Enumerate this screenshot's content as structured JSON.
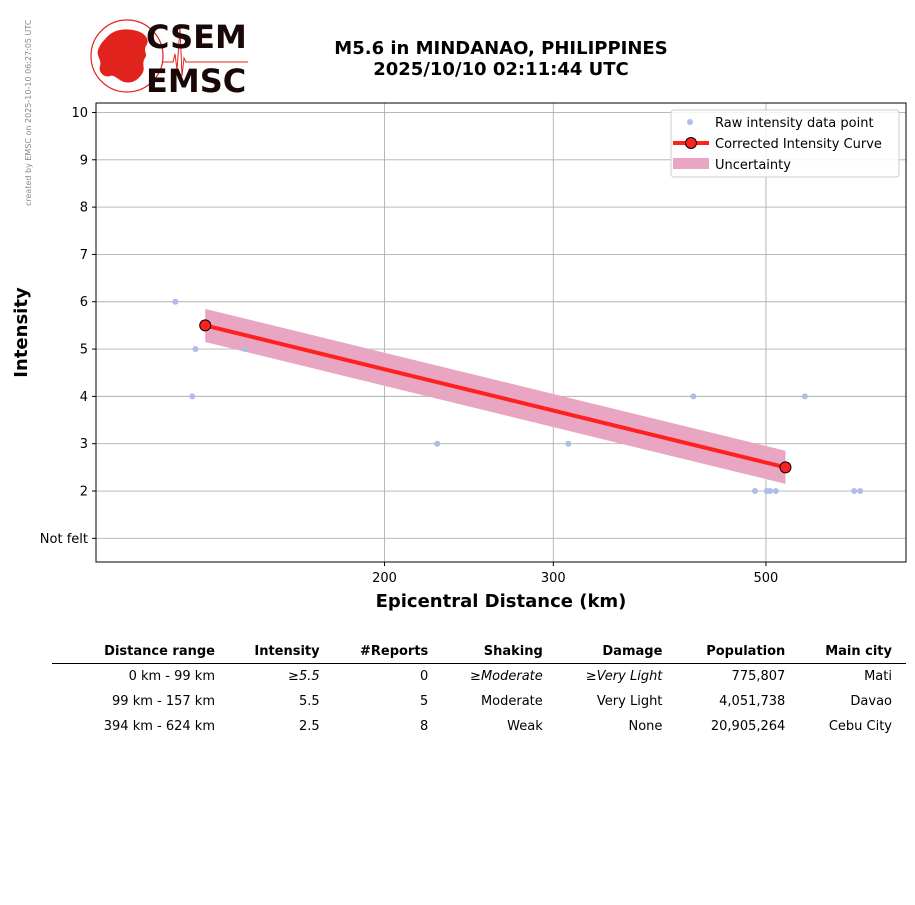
{
  "watermark": "created by EMSC on 2025-10-10 06:27:05 UTC",
  "logo": {
    "line1": "CSEM",
    "line2": "EMSC",
    "brand_color": "#e0231c"
  },
  "title": {
    "line1": "M5.6 in MINDANAO, PHILIPPINES",
    "line2": "2025/10/10 02:11:44 UTC"
  },
  "chart_data": {
    "type": "scatter",
    "xlabel": "Epicentral Distance (km)",
    "ylabel": "Intensity",
    "x_scale": "log",
    "xlim": [
      100,
      700
    ],
    "ylim": [
      0.5,
      10.2
    ],
    "x_ticks": [
      200,
      300,
      500
    ],
    "y_ticks": [
      {
        "value": 1,
        "label": "Not felt"
      },
      {
        "value": 2,
        "label": "2"
      },
      {
        "value": 3,
        "label": "3"
      },
      {
        "value": 4,
        "label": "4"
      },
      {
        "value": 5,
        "label": "5"
      },
      {
        "value": 6,
        "label": "6"
      },
      {
        "value": 7,
        "label": "7"
      },
      {
        "value": 8,
        "label": "8"
      },
      {
        "value": 9,
        "label": "9"
      },
      {
        "value": 10,
        "label": "10"
      }
    ],
    "grid": true,
    "legend_position": "top-right",
    "series": [
      {
        "name": "Raw intensity data point",
        "kind": "points",
        "color": "#aebde9",
        "points": [
          {
            "x": 121,
            "y": 6
          },
          {
            "x": 126,
            "y": 4
          },
          {
            "x": 127,
            "y": 5
          },
          {
            "x": 143,
            "y": 5
          },
          {
            "x": 227,
            "y": 3
          },
          {
            "x": 311,
            "y": 3
          },
          {
            "x": 420,
            "y": 4
          },
          {
            "x": 487,
            "y": 2
          },
          {
            "x": 501,
            "y": 2
          },
          {
            "x": 505,
            "y": 2
          },
          {
            "x": 512,
            "y": 2
          },
          {
            "x": 549,
            "y": 4
          },
          {
            "x": 618,
            "y": 2
          },
          {
            "x": 627,
            "y": 2
          }
        ]
      },
      {
        "name": "Corrected Intensity Curve",
        "kind": "line",
        "color": "#ff2020",
        "points": [
          {
            "x": 130,
            "y": 5.5
          },
          {
            "x": 524,
            "y": 2.5
          }
        ]
      },
      {
        "name": "Uncertainty",
        "kind": "band",
        "color": "#e8a6c2",
        "points": [
          {
            "x": 130,
            "lower": 5.15,
            "upper": 5.85
          },
          {
            "x": 524,
            "lower": 2.15,
            "upper": 2.85
          }
        ]
      }
    ]
  },
  "table": {
    "headers": [
      "Distance range",
      "Intensity",
      "#Reports",
      "Shaking",
      "Damage",
      "Population",
      "Main city"
    ],
    "rows": [
      {
        "distance": "0 km -   99 km",
        "intensity": "≥5.5",
        "reports": "0",
        "shaking": "≥Moderate",
        "damage": "≥Very Light",
        "population": "775,807",
        "city": "Mati"
      },
      {
        "distance": "99 km -  157 km",
        "intensity": "5.5",
        "reports": "5",
        "shaking": "Moderate",
        "damage": "Very Light",
        "population": "4,051,738",
        "city": "Davao"
      },
      {
        "distance": "394 km -  624 km",
        "intensity": "2.5",
        "reports": "8",
        "shaking": "Weak",
        "damage": "None",
        "population": "20,905,264",
        "city": "Cebu City"
      }
    ]
  }
}
